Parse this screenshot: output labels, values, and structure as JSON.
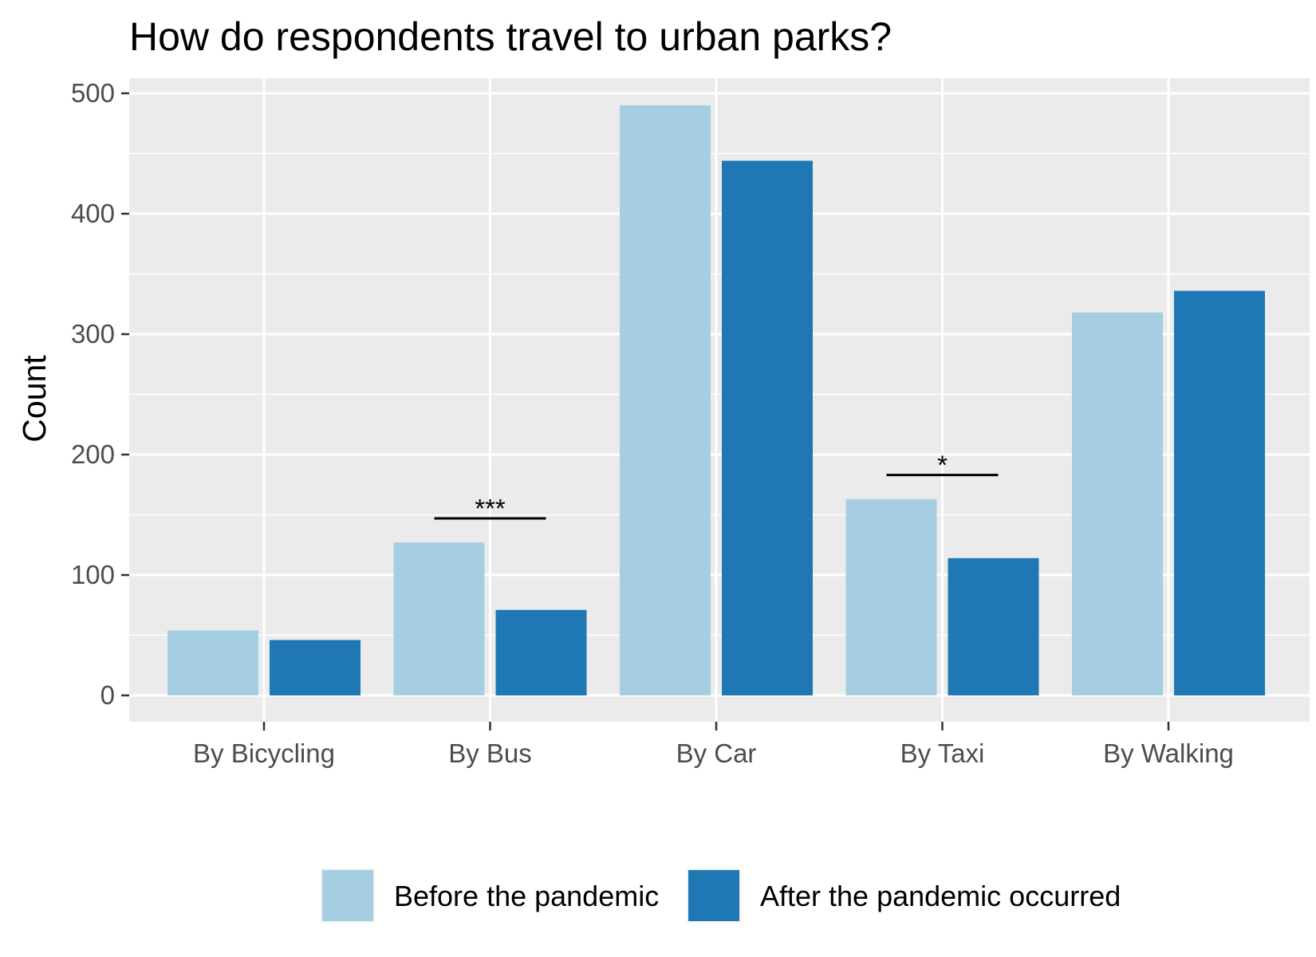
{
  "chart_data": {
    "type": "bar",
    "title": "How do respondents travel to urban parks?",
    "xlabel": "",
    "ylabel": "Count",
    "categories": [
      "By Bicycling",
      "By Bus",
      "By Car",
      "By Taxi",
      "By Walking"
    ],
    "series": [
      {
        "name": "Before the pandemic",
        "color": "#a6cee3",
        "values": [
          54,
          127,
          490,
          163,
          318
        ]
      },
      {
        "name": "After the pandemic occurred",
        "color": "#1f78b4",
        "values": [
          46,
          71,
          444,
          114,
          336
        ]
      }
    ],
    "ylim": [
      0,
      500
    ],
    "yticks": [
      "0",
      "100",
      "200",
      "300",
      "400",
      "500"
    ],
    "grid": true,
    "legend_position": "bottom",
    "annotations": [
      {
        "category": "By Bus",
        "label": "***",
        "y": 147
      },
      {
        "category": "By Taxi",
        "label": "*",
        "y": 183
      }
    ]
  }
}
